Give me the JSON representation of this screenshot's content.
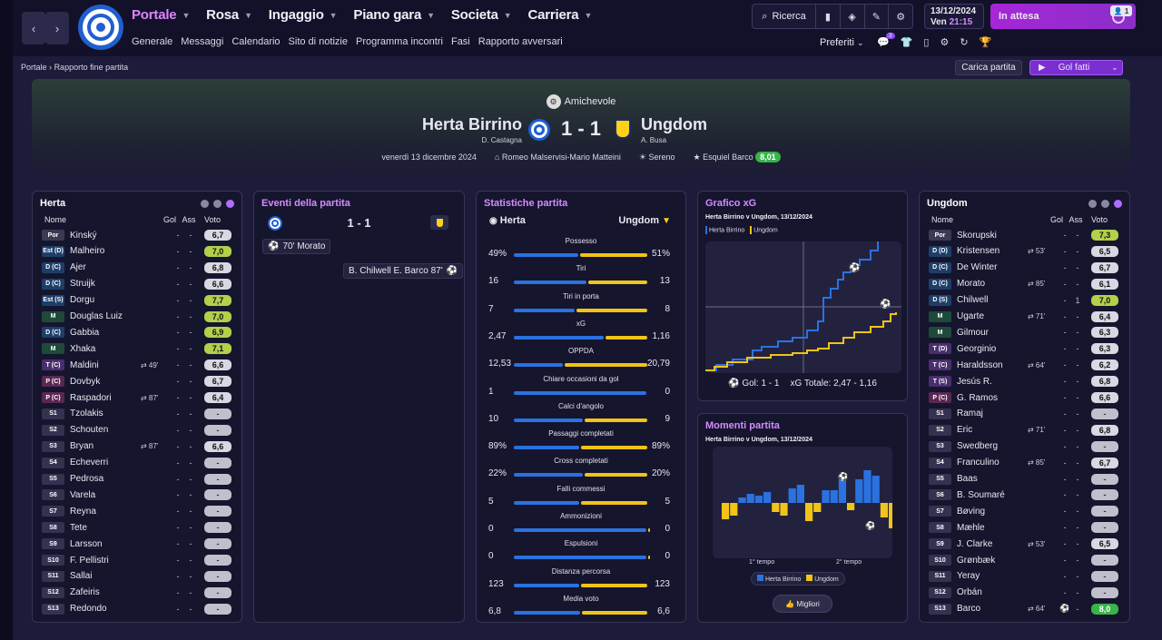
{
  "topbar": {
    "main_nav": [
      "Portale",
      "Rosa",
      "Ingaggio",
      "Piano gara",
      "Societa",
      "Carriera"
    ],
    "sub_nav": [
      "Generale",
      "Messaggi",
      "Calendario",
      "Sito di notizie",
      "Programma incontri",
      "Fasi",
      "Rapporto avversari"
    ],
    "search_label": "Ricerca",
    "date": "13/12/2024",
    "day": "Ven",
    "time": "21:15",
    "pending_label": "In attesa",
    "pending_count": "1",
    "prefs_label": "Preferiti",
    "notif_count": "3"
  },
  "breadcrumb": {
    "root": "Portale",
    "current": "Rapporto fine partita"
  },
  "actions": {
    "load_match": "Carica partita",
    "goals_label": "Gol fatti"
  },
  "match": {
    "competition": "Amichevole",
    "home": "Herta Birrino",
    "home_manager": "D. Castagna",
    "away": "Ungdom",
    "away_manager": "A. Busa",
    "score": "1 - 1",
    "date": "venerdì 13 dicembre 2024",
    "stadium": "Romeo Malservisi-Mario Matteini",
    "weather": "Sereno",
    "potm": "Esquiel Barco",
    "potm_rating": "8,01"
  },
  "home_panel": {
    "title": "Herta",
    "columns": {
      "name": "Nome",
      "goals": "Gol",
      "assists": "Ass",
      "rating": "Voto"
    },
    "players": [
      {
        "pos": "Por",
        "name": "Kinský",
        "sub": "",
        "g": "-",
        "a": "-",
        "v": "6,7"
      },
      {
        "pos": "Est (D)",
        "name": "Malheiro",
        "sub": "",
        "g": "-",
        "a": "-",
        "v": "7,0"
      },
      {
        "pos": "D (C)",
        "name": "Ajer",
        "sub": "",
        "g": "-",
        "a": "-",
        "v": "6,8"
      },
      {
        "pos": "D (C)",
        "name": "Struijk",
        "sub": "",
        "g": "-",
        "a": "-",
        "v": "6,6"
      },
      {
        "pos": "Est (S)",
        "name": "Dorgu",
        "sub": "",
        "g": "-",
        "a": "-",
        "v": "7,7"
      },
      {
        "pos": "M",
        "name": "Douglas Luiz",
        "sub": "",
        "g": "-",
        "a": "-",
        "v": "7,0"
      },
      {
        "pos": "D (C)",
        "name": "Gabbia",
        "sub": "",
        "g": "-",
        "a": "-",
        "v": "6,9"
      },
      {
        "pos": "M",
        "name": "Xhaka",
        "sub": "",
        "g": "-",
        "a": "-",
        "v": "7,1"
      },
      {
        "pos": "T (C)",
        "name": "Maldini",
        "sub": "⇄ 49'",
        "g": "-",
        "a": "-",
        "v": "6,6"
      },
      {
        "pos": "P (C)",
        "name": "Dovbyk",
        "sub": "",
        "g": "-",
        "a": "-",
        "v": "6,7"
      },
      {
        "pos": "P (C)",
        "name": "Raspadori",
        "sub": "⇄ 87'",
        "g": "-",
        "a": "-",
        "v": "6,4"
      },
      {
        "pos": "S1",
        "name": "Tzolakis",
        "sub": "",
        "g": "-",
        "a": "-",
        "v": "-"
      },
      {
        "pos": "S2",
        "name": "Schouten",
        "sub": "",
        "g": "-",
        "a": "-",
        "v": "-"
      },
      {
        "pos": "S3",
        "name": "Bryan",
        "sub": "⇄ 87'",
        "g": "-",
        "a": "-",
        "v": "6,6"
      },
      {
        "pos": "S4",
        "name": "Echeverri",
        "sub": "",
        "g": "-",
        "a": "-",
        "v": "-"
      },
      {
        "pos": "S5",
        "name": "Pedrosa",
        "sub": "",
        "g": "-",
        "a": "-",
        "v": "-"
      },
      {
        "pos": "S6",
        "name": "Varela",
        "sub": "",
        "g": "-",
        "a": "-",
        "v": "-"
      },
      {
        "pos": "S7",
        "name": "Reyna",
        "sub": "",
        "g": "-",
        "a": "-",
        "v": "-"
      },
      {
        "pos": "S8",
        "name": "Tete",
        "sub": "",
        "g": "-",
        "a": "-",
        "v": "-"
      },
      {
        "pos": "S9",
        "name": "Larsson",
        "sub": "",
        "g": "-",
        "a": "-",
        "v": "-"
      },
      {
        "pos": "S10",
        "name": "F. Pellistri",
        "sub": "",
        "g": "-",
        "a": "-",
        "v": "-"
      },
      {
        "pos": "S11",
        "name": "Sallai",
        "sub": "",
        "g": "-",
        "a": "-",
        "v": "-"
      },
      {
        "pos": "S12",
        "name": "Zafeiris",
        "sub": "",
        "g": "-",
        "a": "-",
        "v": "-"
      },
      {
        "pos": "S13",
        "name": "Redondo",
        "sub": "",
        "g": "-",
        "a": "-",
        "v": "-"
      }
    ]
  },
  "events": {
    "title": "Eventi della partita",
    "score": "1 - 1",
    "home_event": "70' Morato",
    "away_event": "B. Chilwell E. Barco 87'"
  },
  "stats": {
    "title": "Statistiche partita",
    "home": "Herta",
    "away": "Ungdom",
    "rows": [
      {
        "label": "Possesso",
        "h": "49%",
        "a": "51%",
        "hv": 49,
        "av": 51
      },
      {
        "label": "Tiri",
        "h": "16",
        "a": "13",
        "hv": 16,
        "av": 13
      },
      {
        "label": "Tiri in porta",
        "h": "7",
        "a": "8",
        "hv": 7,
        "av": 8
      },
      {
        "label": "xG",
        "h": "2,47",
        "a": "1,16",
        "hv": 2.47,
        "av": 1.16
      },
      {
        "label": "OPPDA",
        "h": "12,53",
        "a": "20,79",
        "hv": 12.53,
        "av": 20.79
      },
      {
        "label": "Chiare occasioni da gol",
        "h": "1",
        "a": "0",
        "hv": 1,
        "av": 0
      },
      {
        "label": "Calci d'angolo",
        "h": "10",
        "a": "9",
        "hv": 10,
        "av": 9
      },
      {
        "label": "Passaggi completati",
        "h": "89%",
        "a": "89%",
        "hv": 89,
        "av": 89
      },
      {
        "label": "Cross completati",
        "h": "22%",
        "a": "20%",
        "hv": 22,
        "av": 20
      },
      {
        "label": "Falli commessi",
        "h": "5",
        "a": "5",
        "hv": 5,
        "av": 5
      },
      {
        "label": "Ammonizioni",
        "h": "0",
        "a": "0",
        "hv": 0,
        "av": 0
      },
      {
        "label": "Espulsioni",
        "h": "0",
        "a": "0",
        "hv": 0,
        "av": 0
      },
      {
        "label": "Distanza percorsa",
        "h": "123",
        "a": "123",
        "hv": 123,
        "av": 123
      },
      {
        "label": "Media voto",
        "h": "6,8",
        "a": "6,6",
        "hv": 6.8,
        "av": 6.6
      }
    ]
  },
  "xg_chart": {
    "title": "Grafico xG",
    "subtitle": "Herta Birrino v Ungdom, 13/12/2024",
    "legend_home": "Herta Birrino",
    "legend_away": "Ungdom",
    "goals_label": "Gol: 1 - 1",
    "xg_label": "xG Totale: 2,47 - 1,16",
    "colors": {
      "home": "#2a72e0",
      "away": "#f0c419"
    }
  },
  "momentum": {
    "title": "Momenti partita",
    "subtitle": "Herta Birrino v Ungdom, 13/12/2024",
    "first_half": "1° tempo",
    "second_half": "2° tempo",
    "legend_home": "Herta Birrino",
    "legend_away": "Ungdom",
    "best_label": "Migliori"
  },
  "away_panel": {
    "title": "Ungdom",
    "columns": {
      "name": "Nome",
      "goals": "Gol",
      "assists": "Ass",
      "rating": "Voto"
    },
    "players": [
      {
        "pos": "Por",
        "name": "Skorupski",
        "sub": "",
        "g": "-",
        "a": "-",
        "v": "7,3"
      },
      {
        "pos": "D (D)",
        "name": "Kristensen",
        "sub": "⇄ 53'",
        "g": "-",
        "a": "-",
        "v": "6,5"
      },
      {
        "pos": "D (C)",
        "name": "De Winter",
        "sub": "",
        "g": "-",
        "a": "-",
        "v": "6,7"
      },
      {
        "pos": "D (C)",
        "name": "Morato",
        "sub": "⇄ 85'",
        "g": "-",
        "a": "-",
        "v": "6,1"
      },
      {
        "pos": "D (S)",
        "name": "Chilwell",
        "sub": "",
        "g": "-",
        "a": "1",
        "v": "7,0"
      },
      {
        "pos": "M",
        "name": "Ugarte",
        "sub": "⇄ 71'",
        "g": "-",
        "a": "-",
        "v": "6,4"
      },
      {
        "pos": "M",
        "name": "Gilmour",
        "sub": "",
        "g": "-",
        "a": "-",
        "v": "6,3"
      },
      {
        "pos": "T (D)",
        "name": "Georginio",
        "sub": "",
        "g": "-",
        "a": "-",
        "v": "6,3"
      },
      {
        "pos": "T (C)",
        "name": "Haraldsson",
        "sub": "⇄ 64'",
        "g": "-",
        "a": "-",
        "v": "6,2"
      },
      {
        "pos": "T (S)",
        "name": "Jesús R.",
        "sub": "",
        "g": "-",
        "a": "-",
        "v": "6,8"
      },
      {
        "pos": "P (C)",
        "name": "G. Ramos",
        "sub": "",
        "g": "-",
        "a": "-",
        "v": "6,6"
      },
      {
        "pos": "S1",
        "name": "Ramaj",
        "sub": "",
        "g": "-",
        "a": "-",
        "v": "-"
      },
      {
        "pos": "S2",
        "name": "Eric",
        "sub": "⇄ 71'",
        "g": "-",
        "a": "-",
        "v": "6,8"
      },
      {
        "pos": "S3",
        "name": "Swedberg",
        "sub": "",
        "g": "-",
        "a": "-",
        "v": "-"
      },
      {
        "pos": "S4",
        "name": "Franculino",
        "sub": "⇄ 85'",
        "g": "-",
        "a": "-",
        "v": "6,7"
      },
      {
        "pos": "S5",
        "name": "Baas",
        "sub": "",
        "g": "-",
        "a": "-",
        "v": "-"
      },
      {
        "pos": "S6",
        "name": "B. Soumaré",
        "sub": "",
        "g": "-",
        "a": "-",
        "v": "-"
      },
      {
        "pos": "S7",
        "name": "Bøving",
        "sub": "",
        "g": "-",
        "a": "-",
        "v": "-"
      },
      {
        "pos": "S8",
        "name": "Mæhle",
        "sub": "",
        "g": "-",
        "a": "-",
        "v": "-"
      },
      {
        "pos": "S9",
        "name": "J. Clarke",
        "sub": "⇄ 53'",
        "g": "-",
        "a": "-",
        "v": "6,5"
      },
      {
        "pos": "S10",
        "name": "Grønbæk",
        "sub": "",
        "g": "-",
        "a": "-",
        "v": "-"
      },
      {
        "pos": "S11",
        "name": "Yeray",
        "sub": "",
        "g": "-",
        "a": "-",
        "v": "-"
      },
      {
        "pos": "S12",
        "name": "Orbán",
        "sub": "",
        "g": "-",
        "a": "-",
        "v": "-"
      },
      {
        "pos": "S13",
        "name": "Barco",
        "sub": "⇄ 64'",
        "g": "⚽",
        "a": "-",
        "v": "8,0"
      }
    ]
  }
}
